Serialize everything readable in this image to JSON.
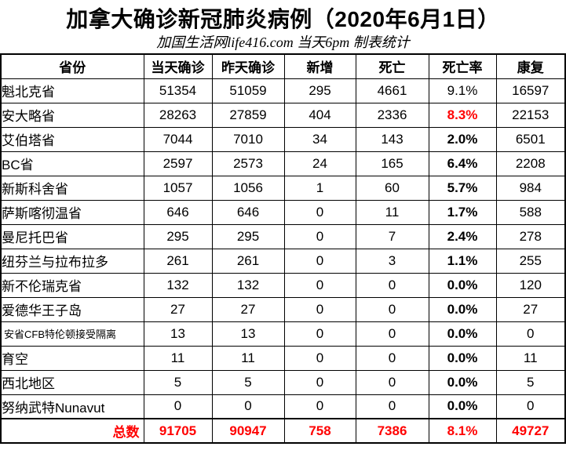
{
  "colors": {
    "accent_red": "#FF0000",
    "text": "#000000",
    "border": "#000000",
    "background": "#FFFFFF"
  },
  "chart_data": {
    "type": "table",
    "title": "加拿大确诊新冠肺炎病例（2020年6月1日）",
    "subtitle": "加国生活网life416.com 当天6pm 制表统计",
    "columns": [
      "省份",
      "当天确诊",
      "昨天确诊",
      "新增",
      "死亡",
      "死亡率",
      "康复"
    ],
    "rows": [
      {
        "province": "魁北克省",
        "today": "51354",
        "yesterday": "51059",
        "new": "295",
        "deaths": "4661",
        "rate": "9.1%",
        "recovered": "16597",
        "rate_style": "normal",
        "small_label": false
      },
      {
        "province": "安大略省",
        "today": "28263",
        "yesterday": "27859",
        "new": "404",
        "deaths": "2336",
        "rate": "8.3%",
        "recovered": "22153",
        "rate_style": "red-bold",
        "small_label": false
      },
      {
        "province": "艾伯塔省",
        "today": "7044",
        "yesterday": "7010",
        "new": "34",
        "deaths": "143",
        "rate": "2.0%",
        "recovered": "6501",
        "rate_style": "bold",
        "small_label": false
      },
      {
        "province": "BC省",
        "today": "2597",
        "yesterday": "2573",
        "new": "24",
        "deaths": "165",
        "rate": "6.4%",
        "recovered": "2208",
        "rate_style": "bold",
        "small_label": false
      },
      {
        "province": "新斯科舍省",
        "today": "1057",
        "yesterday": "1056",
        "new": "1",
        "deaths": "60",
        "rate": "5.7%",
        "recovered": "984",
        "rate_style": "bold",
        "small_label": false
      },
      {
        "province": "萨斯喀彻温省",
        "today": "646",
        "yesterday": "646",
        "new": "0",
        "deaths": "11",
        "rate": "1.7%",
        "recovered": "588",
        "rate_style": "bold",
        "small_label": false
      },
      {
        "province": "曼尼托巴省",
        "today": "295",
        "yesterday": "295",
        "new": "0",
        "deaths": "7",
        "rate": "2.4%",
        "recovered": "278",
        "rate_style": "bold",
        "small_label": false
      },
      {
        "province": "纽芬兰与拉布拉多",
        "today": "261",
        "yesterday": "261",
        "new": "0",
        "deaths": "3",
        "rate": "1.1%",
        "recovered": "255",
        "rate_style": "bold",
        "small_label": false
      },
      {
        "province": "新不伦瑞克省",
        "today": "132",
        "yesterday": "132",
        "new": "0",
        "deaths": "0",
        "rate": "0.0%",
        "recovered": "120",
        "rate_style": "bold",
        "small_label": false
      },
      {
        "province": "爱德华王子岛",
        "today": "27",
        "yesterday": "27",
        "new": "0",
        "deaths": "0",
        "rate": "0.0%",
        "recovered": "27",
        "rate_style": "bold",
        "small_label": false
      },
      {
        "province": "安省CFB特伦顿接受隔离",
        "today": "13",
        "yesterday": "13",
        "new": "0",
        "deaths": "0",
        "rate": "0.0%",
        "recovered": "0",
        "rate_style": "bold",
        "small_label": true
      },
      {
        "province": "育空",
        "today": "11",
        "yesterday": "11",
        "new": "0",
        "deaths": "0",
        "rate": "0.0%",
        "recovered": "11",
        "rate_style": "bold",
        "small_label": false
      },
      {
        "province": "西北地区",
        "today": "5",
        "yesterday": "5",
        "new": "0",
        "deaths": "0",
        "rate": "0.0%",
        "recovered": "5",
        "rate_style": "bold",
        "small_label": false
      },
      {
        "province": "努纳武特Nunavut",
        "today": "0",
        "yesterday": "0",
        "new": "0",
        "deaths": "0",
        "rate": "0.0%",
        "recovered": "0",
        "rate_style": "bold",
        "small_label": false
      }
    ],
    "totals": {
      "label": "总数",
      "today": "91705",
      "yesterday": "90947",
      "new": "758",
      "deaths": "7386",
      "rate": "8.1%",
      "recovered": "49727"
    }
  }
}
